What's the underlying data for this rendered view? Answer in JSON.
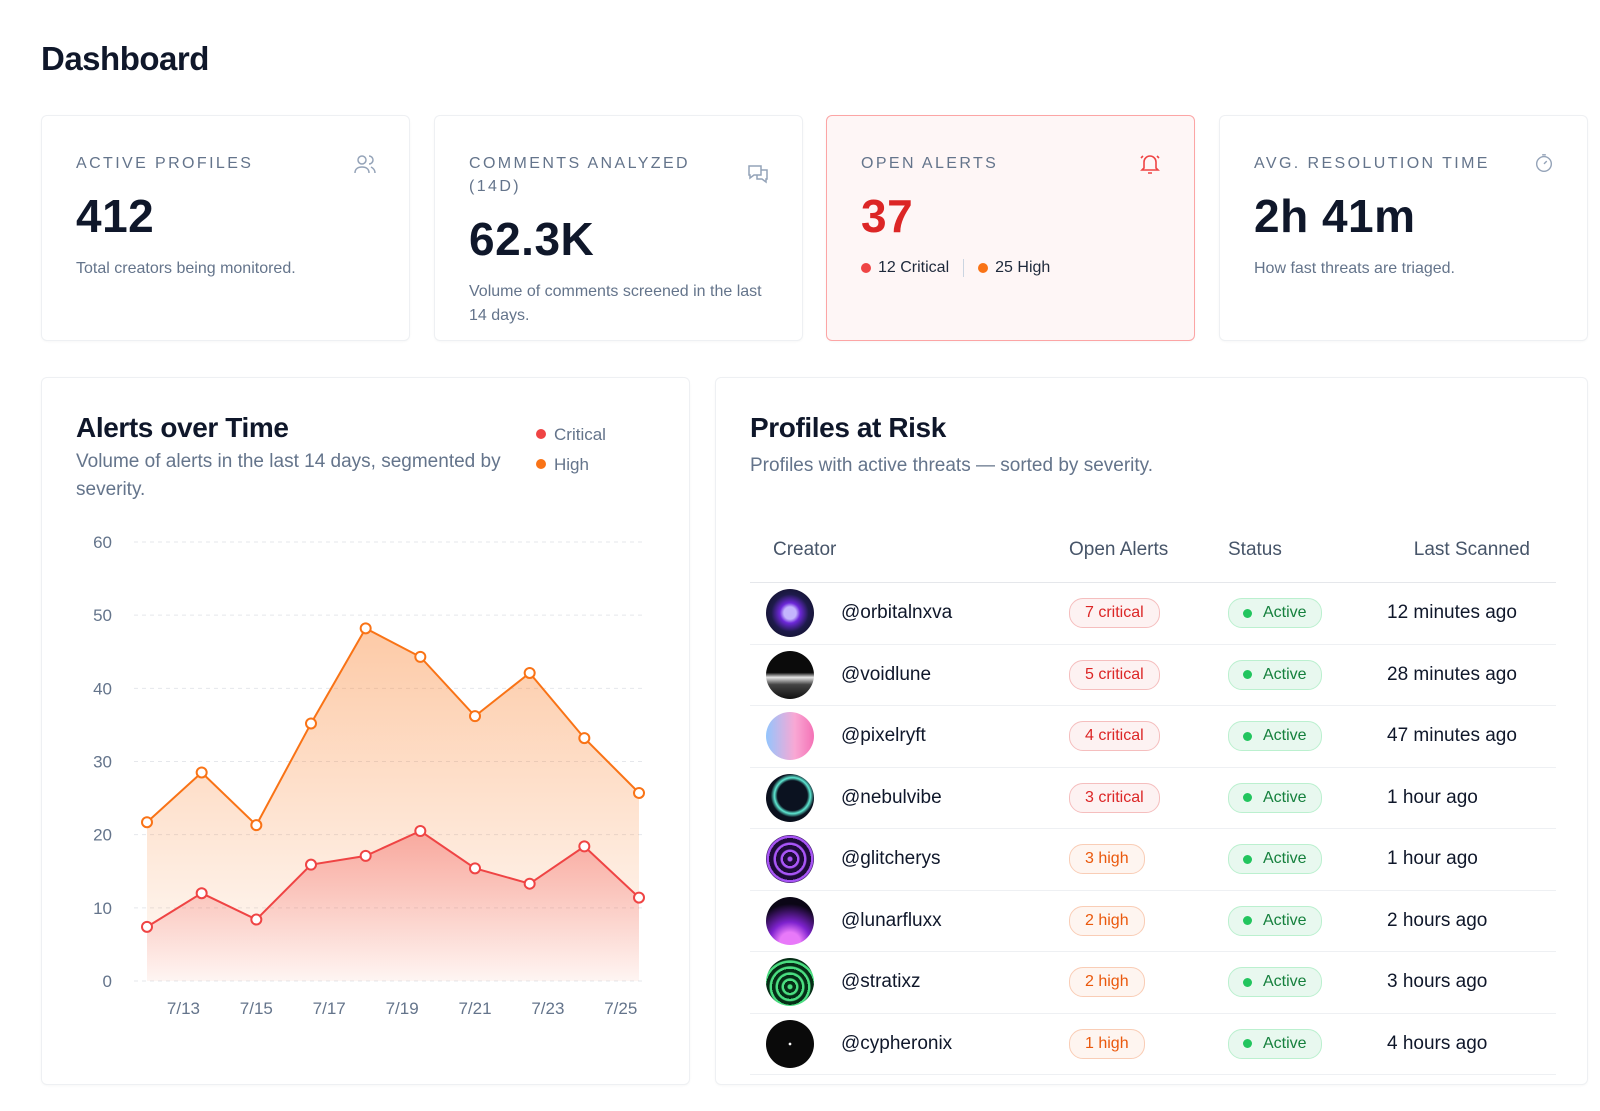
{
  "header": {
    "title": "Dashboard"
  },
  "stats": [
    {
      "label": "ACTIVE PROFILES",
      "value": "412",
      "description": "Total creators being monitored."
    },
    {
      "label": "COMMENTS ANALYZED (14D)",
      "value": "62.3K",
      "description": "Volume of comments screened in the last 14 days."
    },
    {
      "label": "OPEN ALERTS",
      "value": "37",
      "breakdown": [
        "12 Critical",
        "25 High"
      ]
    },
    {
      "label": "AVG. RESOLUTION TIME",
      "value": "2h 41m",
      "description": "How fast threats are triaged."
    }
  ],
  "chart_data": {
    "type": "area",
    "title": "Alerts over Time",
    "subtitle": "Volume of alerts in the last 14 days, segmented by severity.",
    "x": [
      12,
      13.5,
      15,
      16.5,
      18,
      19.5,
      21,
      22.5,
      24,
      25.5
    ],
    "xlim": [
      12,
      25.5
    ],
    "xticks": [
      {
        "value": 13,
        "label": "7/13"
      },
      {
        "value": 15,
        "label": "7/15"
      },
      {
        "value": 17,
        "label": "7/17"
      },
      {
        "value": 19,
        "label": "7/19"
      },
      {
        "value": 21,
        "label": "7/21"
      },
      {
        "value": 23,
        "label": "7/23"
      },
      {
        "value": 25,
        "label": "7/25"
      }
    ],
    "ylim": [
      0,
      60
    ],
    "yticks": [
      0,
      10,
      20,
      30,
      40,
      50,
      60
    ],
    "grid": true,
    "series": [
      {
        "name": "Critical",
        "color": "#ef4444",
        "values": [
          7.4,
          12,
          8.4,
          15.9,
          17.1,
          20.5,
          15.4,
          13.3,
          18.4,
          11.4
        ]
      },
      {
        "name": "High",
        "color": "#f97316",
        "values": [
          21.7,
          28.5,
          21.3,
          35.2,
          48.2,
          44.3,
          36.2,
          42.1,
          33.2,
          25.7
        ]
      }
    ]
  },
  "table": {
    "title": "Profiles at Risk",
    "subtitle": "Profiles with active threats — sorted by severity.",
    "columns": [
      "Creator",
      "Open Alerts",
      "Status",
      "Last Scanned"
    ],
    "rows": [
      {
        "creator": "@orbitalnxva",
        "alerts": "7 critical",
        "alert_color": "#dc2626",
        "status": "Active",
        "last_scanned": "12 minutes ago"
      },
      {
        "creator": "@voidlune",
        "alerts": "5 critical",
        "alert_color": "#dc2626",
        "status": "Active",
        "last_scanned": "28 minutes ago"
      },
      {
        "creator": "@pixelryft",
        "alerts": "4 critical",
        "alert_color": "#dc2626",
        "status": "Active",
        "last_scanned": "47 minutes ago"
      },
      {
        "creator": "@nebulvibe",
        "alerts": "3 critical",
        "alert_color": "#dc2626",
        "status": "Active",
        "last_scanned": "1 hour ago"
      },
      {
        "creator": "@glitcherys",
        "alerts": "3 high",
        "alert_color": "#ea580c",
        "status": "Active",
        "last_scanned": "1 hour ago"
      },
      {
        "creator": "@lunarfluxx",
        "alerts": "2 high",
        "alert_color": "#ea580c",
        "status": "Active",
        "last_scanned": "2 hours ago"
      },
      {
        "creator": "@stratixz",
        "alerts": "2 high",
        "alert_color": "#ea580c",
        "status": "Active",
        "last_scanned": "3 hours ago"
      },
      {
        "creator": "@cypheronix",
        "alerts": "1 high",
        "alert_color": "#ea580c",
        "status": "Active",
        "last_scanned": "4 hours ago"
      }
    ]
  }
}
